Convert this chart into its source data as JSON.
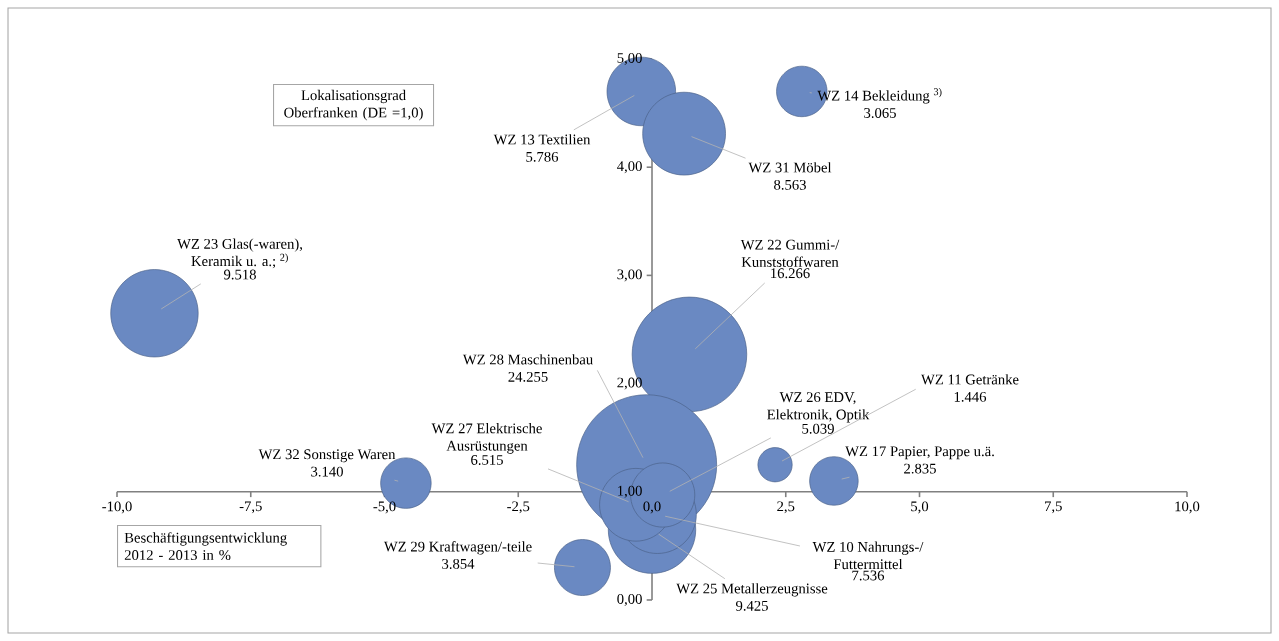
{
  "chart_data": {
    "type": "bubble",
    "xlabel": "Beschäftigungsentwicklung 2012 - 2013 in %",
    "ylabel": "Lokalisationsgrad Oberfranken (DE =1,0)",
    "xlim": [
      -10,
      10
    ],
    "ylim": [
      0,
      5
    ],
    "xticks": [
      {
        "value": -10,
        "label": "-10,0"
      },
      {
        "value": -7.5,
        "label": "-7,5"
      },
      {
        "value": -5,
        "label": "-5,0"
      },
      {
        "value": -2.5,
        "label": "-2,5"
      },
      {
        "value": 0,
        "label": "0,0"
      },
      {
        "value": 2.5,
        "label": "2,5"
      },
      {
        "value": 5,
        "label": "5,0"
      },
      {
        "value": 7.5,
        "label": "7,5"
      },
      {
        "value": 10,
        "label": "10,0"
      }
    ],
    "yticks": [
      {
        "value": 0,
        "label": "0,00"
      },
      {
        "value": 1,
        "label": "1,00"
      },
      {
        "value": 2,
        "label": "2,00"
      },
      {
        "value": 3,
        "label": "3,00"
      },
      {
        "value": 4,
        "label": "4,00"
      },
      {
        "value": 5,
        "label": "5,00"
      }
    ],
    "color": "#6a89c2",
    "x": [
      -0.2,
      0.6,
      2.8,
      -9.3,
      0.7,
      -0.1,
      0.0,
      0.1,
      -0.3,
      0.2,
      -1.3,
      -4.6,
      2.3,
      3.4
    ],
    "values": [
      4.7,
      4.31,
      4.7,
      2.65,
      2.27,
      1.25,
      0.65,
      0.79,
      0.88,
      0.97,
      0.3,
      1.08,
      1.25,
      1.1
    ],
    "sizes": [
      0.24,
      0.35,
      0.13,
      0.39,
      0.67,
      1,
      0.39,
      0.31,
      0.27,
      0.21,
      0.16,
      0.13,
      0.06,
      0.12
    ],
    "annotations": [
      {
        "text": "WZ 13 Textilien",
        "x": -0.2,
        "y": 4.7
      },
      "5.786",
      {
        "text": "WZ 31 Möbel",
        "x": 0.6,
        "y": 4.31
      },
      "8.563",
      {
        "text": "WZ 14 Bekleidung $^{3)}$",
        "x": 2.8,
        "y": 4.7
      },
      "3.065",
      {
        "text": "WZ 23 Glas(-waren), Keramik u. a.; $^{2)}$",
        "x": -9.3,
        "y": 2.65
      },
      "9.518",
      {
        "text": "WZ 22 Gummi-/ Kunststoffwaren",
        "x": 0.7,
        "y": 2.27
      },
      "16.266",
      {
        "text": "WZ 28 Maschinenbau",
        "x": -0.1,
        "y": 1.25
      },
      "24.255",
      {
        "text": "WZ 25 Metallerzeugnisse",
        "x": 0.0,
        "y": 0.65
      },
      "9.425",
      {
        "text": "WZ 10 Nahrungs-/ Futtermittel",
        "x": 0.1,
        "y": 0.79
      },
      "7.536",
      {
        "text": "WZ 27 Elektrische Ausrüstungen",
        "x": -0.3,
        "y": 0.88
      },
      "6.515",
      {
        "text": "WZ 26 EDV, Elektronik, Optik",
        "x": 0.2,
        "y": 0.97
      },
      "5.039",
      {
        "text": "WZ 29 Kraftwagen/-teile",
        "x": -1.3,
        "y": 0.3
      },
      "3.854",
      {
        "text": "WZ 32 Sonstige Waren",
        "x": -4.6,
        "y": 1.08
      },
      "3.140",
      {
        "text": "WZ 11 Getränke",
        "x": 2.3,
        "y": 1.25
      },
      "1.446",
      {
        "text": "WZ 17 Papier, Pappe u.ä.",
        "x": 3.4,
        "y": 1.1
      },
      "2.835"
    ]
  }
}
